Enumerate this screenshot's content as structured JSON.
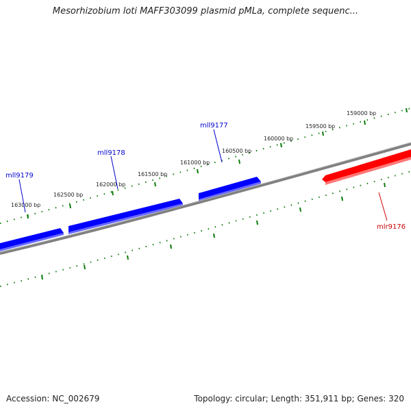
{
  "title": "Mesorhizobium loti MAFF303099 plasmid pMLa, complete sequenc...",
  "footer": {
    "accession": "Accession: NC_002679",
    "summary": "Topology: circular; Length: 351,911 bp; Genes: 320"
  },
  "colors": {
    "backbone": "#808080",
    "forward_gene": "#ff0000",
    "reverse_gene": "#0000ff",
    "tick": "#0a7a0a",
    "reverse_label": "#0000cc",
    "forward_label": "#cc0000"
  },
  "ticks": [
    {
      "label": "159000 bp"
    },
    {
      "label": "159500 bp"
    },
    {
      "label": "160000 bp"
    },
    {
      "label": "160500 bp"
    },
    {
      "label": "161000 bp"
    },
    {
      "label": "161500 bp"
    },
    {
      "label": "162000 bp"
    },
    {
      "label": "162500 bp"
    },
    {
      "label": "163000 bp"
    }
  ],
  "genes": [
    {
      "name": "mll9179",
      "strand": "reverse"
    },
    {
      "name": "mll9178",
      "strand": "reverse"
    },
    {
      "name": "mll9177",
      "strand": "reverse"
    },
    {
      "name": "mlr9176",
      "strand": "forward"
    }
  ]
}
